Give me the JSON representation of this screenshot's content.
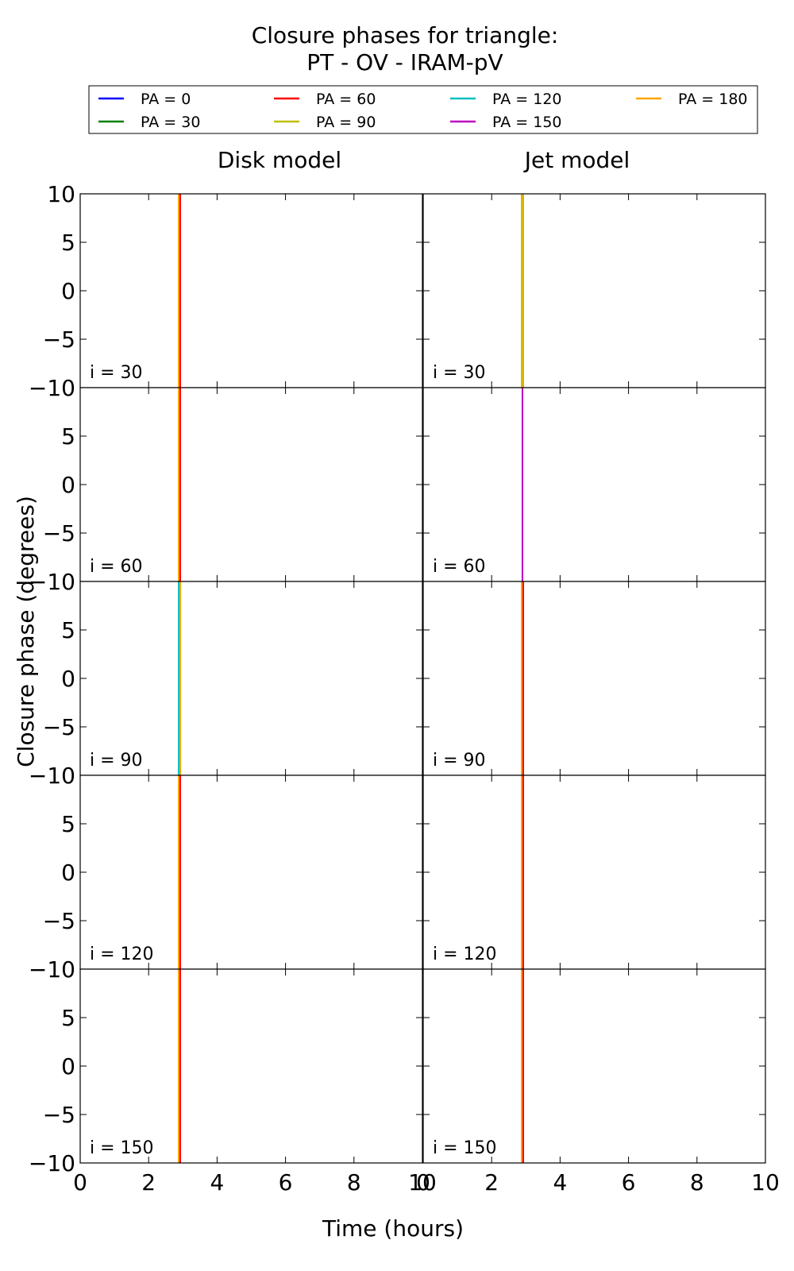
{
  "title_line1": "Closure phases for triangle:",
  "title_line2": "PT - OV - IRAM-pV",
  "legend": {
    "entries": [
      {
        "label": "PA = 0",
        "color": "#0000ff"
      },
      {
        "label": "PA = 30",
        "color": "#008000"
      },
      {
        "label": "PA = 60",
        "color": "#ff0000"
      },
      {
        "label": "PA = 90",
        "color": "#bfbf00"
      },
      {
        "label": "PA = 120",
        "color": "#00bfbf"
      },
      {
        "label": "PA = 150",
        "color": "#bf00bf"
      },
      {
        "label": "PA = 180",
        "color": "#ffa500"
      }
    ],
    "columns": 4,
    "placement": "top"
  },
  "columns": [
    "Disk model",
    "Jet model"
  ],
  "xlabel": "Time (hours)",
  "ylabel": "Closure phase (degrees)",
  "chart_data": {
    "type": "line",
    "title": "Closure phases for triangle: PT - OV - IRAM-pV",
    "xlabel": "Time (hours)",
    "ylabel": "Closure phase (degrees)",
    "xlim": [
      0,
      10
    ],
    "ylim": [
      -10,
      10
    ],
    "x_ticks": [
      0,
      2,
      4,
      6,
      8,
      10
    ],
    "y_ticks": [
      -10,
      -5,
      0,
      5,
      10
    ],
    "grid": false,
    "legend_placement": "top",
    "series_names": [
      "PA = 0",
      "PA = 30",
      "PA = 60",
      "PA = 90",
      "PA = 120",
      "PA = 150",
      "PA = 180"
    ],
    "panels": [
      {
        "column": "Disk model",
        "label": "i = 30",
        "vline_x": 2.9,
        "visible_colors": [
          "#ffa500",
          "#ff0000"
        ]
      },
      {
        "column": "Jet model",
        "label": "i = 30",
        "vline_x": 2.9,
        "visible_colors": [
          "#ffa500",
          "#bfbf00"
        ]
      },
      {
        "column": "Disk model",
        "label": "i = 60",
        "vline_x": 2.9,
        "visible_colors": [
          "#ffa500",
          "#ff0000"
        ]
      },
      {
        "column": "Jet model",
        "label": "i = 60",
        "vline_x": 2.9,
        "visible_colors": [
          "#bf00bf"
        ]
      },
      {
        "column": "Disk model",
        "label": "i = 90",
        "vline_x": 2.9,
        "visible_colors": [
          "#00bfbf",
          "#ffa500"
        ]
      },
      {
        "column": "Jet model",
        "label": "i = 90",
        "vline_x": 2.9,
        "visible_colors": [
          "#ffa500",
          "#ff0000"
        ]
      },
      {
        "column": "Disk model",
        "label": "i = 120",
        "vline_x": 2.9,
        "visible_colors": [
          "#ffa500",
          "#ff0000"
        ]
      },
      {
        "column": "Jet model",
        "label": "i = 120",
        "vline_x": 2.9,
        "visible_colors": [
          "#ffa500",
          "#ff0000"
        ]
      },
      {
        "column": "Disk model",
        "label": "i = 150",
        "vline_x": 2.9,
        "visible_colors": [
          "#ffa500",
          "#ff0000"
        ]
      },
      {
        "column": "Jet model",
        "label": "i = 150",
        "vline_x": 2.9,
        "visible_colors": [
          "#ffa500",
          "#ff0000"
        ]
      }
    ]
  }
}
